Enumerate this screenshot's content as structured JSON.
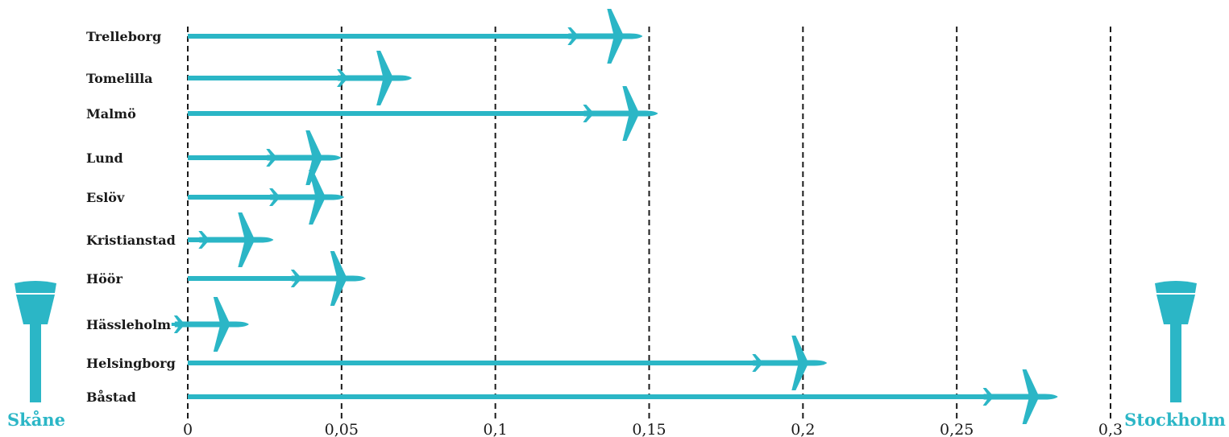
{
  "colors": {
    "accent": "#2bb6c6",
    "text": "#1a1a1a",
    "grid": "#1a1a1a"
  },
  "icons": {
    "marker": "airplane-icon",
    "endpoints": "control-tower-icon"
  },
  "labels": {
    "left": "Skåne",
    "right": "Stockholm"
  },
  "chart_data": {
    "type": "bar",
    "orientation": "horizontal",
    "categories": [
      "Trelleborg",
      "Tomelilla",
      "Malmö",
      "Lund",
      "Eslöv",
      "Kristianstad",
      "Höör",
      "Hässleholm",
      "Helsingborg",
      "Båstad"
    ],
    "values": [
      0.14,
      0.065,
      0.145,
      0.042,
      0.043,
      0.02,
      0.05,
      0.012,
      0.2,
      0.275
    ],
    "xlim": [
      0,
      0.3
    ],
    "xticks": [
      0,
      0.05,
      0.1,
      0.15,
      0.2,
      0.25,
      0.3
    ],
    "xtick_labels": [
      "0",
      "0,05",
      "0,1",
      "0,15",
      "0,2",
      "0,25",
      "0,3"
    ],
    "grid": "vertical dashed",
    "marker": "airplane"
  }
}
